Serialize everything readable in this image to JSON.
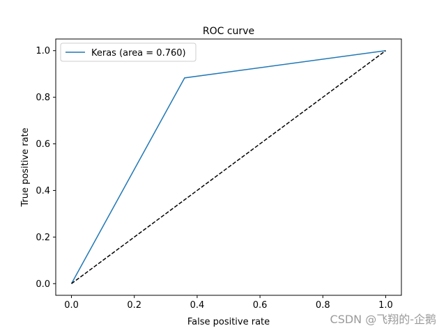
{
  "chart_data": {
    "type": "line",
    "title": "ROC curve",
    "xlabel": "False positive rate",
    "ylabel": "True positive rate",
    "xlim": [
      -0.05,
      1.05
    ],
    "ylim": [
      -0.05,
      1.05
    ],
    "xticks": [
      0.0,
      0.2,
      0.4,
      0.6,
      0.8,
      1.0
    ],
    "yticks": [
      0.0,
      0.2,
      0.4,
      0.6,
      0.8,
      1.0
    ],
    "xtick_labels": [
      "0.0",
      "0.2",
      "0.4",
      "0.6",
      "0.8",
      "1.0"
    ],
    "ytick_labels": [
      "0.0",
      "0.2",
      "0.4",
      "0.6",
      "0.8",
      "1.0"
    ],
    "grid": false,
    "legend_position": "top-left",
    "series": [
      {
        "name": "Keras (area = 0.760)",
        "color": "#1f77b4",
        "style": "solid",
        "x": [
          0.0,
          0.36,
          1.0
        ],
        "y": [
          0.0,
          0.883,
          1.0
        ]
      },
      {
        "color": "#000000",
        "style": "dashed",
        "x": [
          0.0,
          1.0
        ],
        "y": [
          0.0,
          1.0
        ]
      }
    ]
  },
  "watermark": "CSDN @飞翔的-企鹅"
}
